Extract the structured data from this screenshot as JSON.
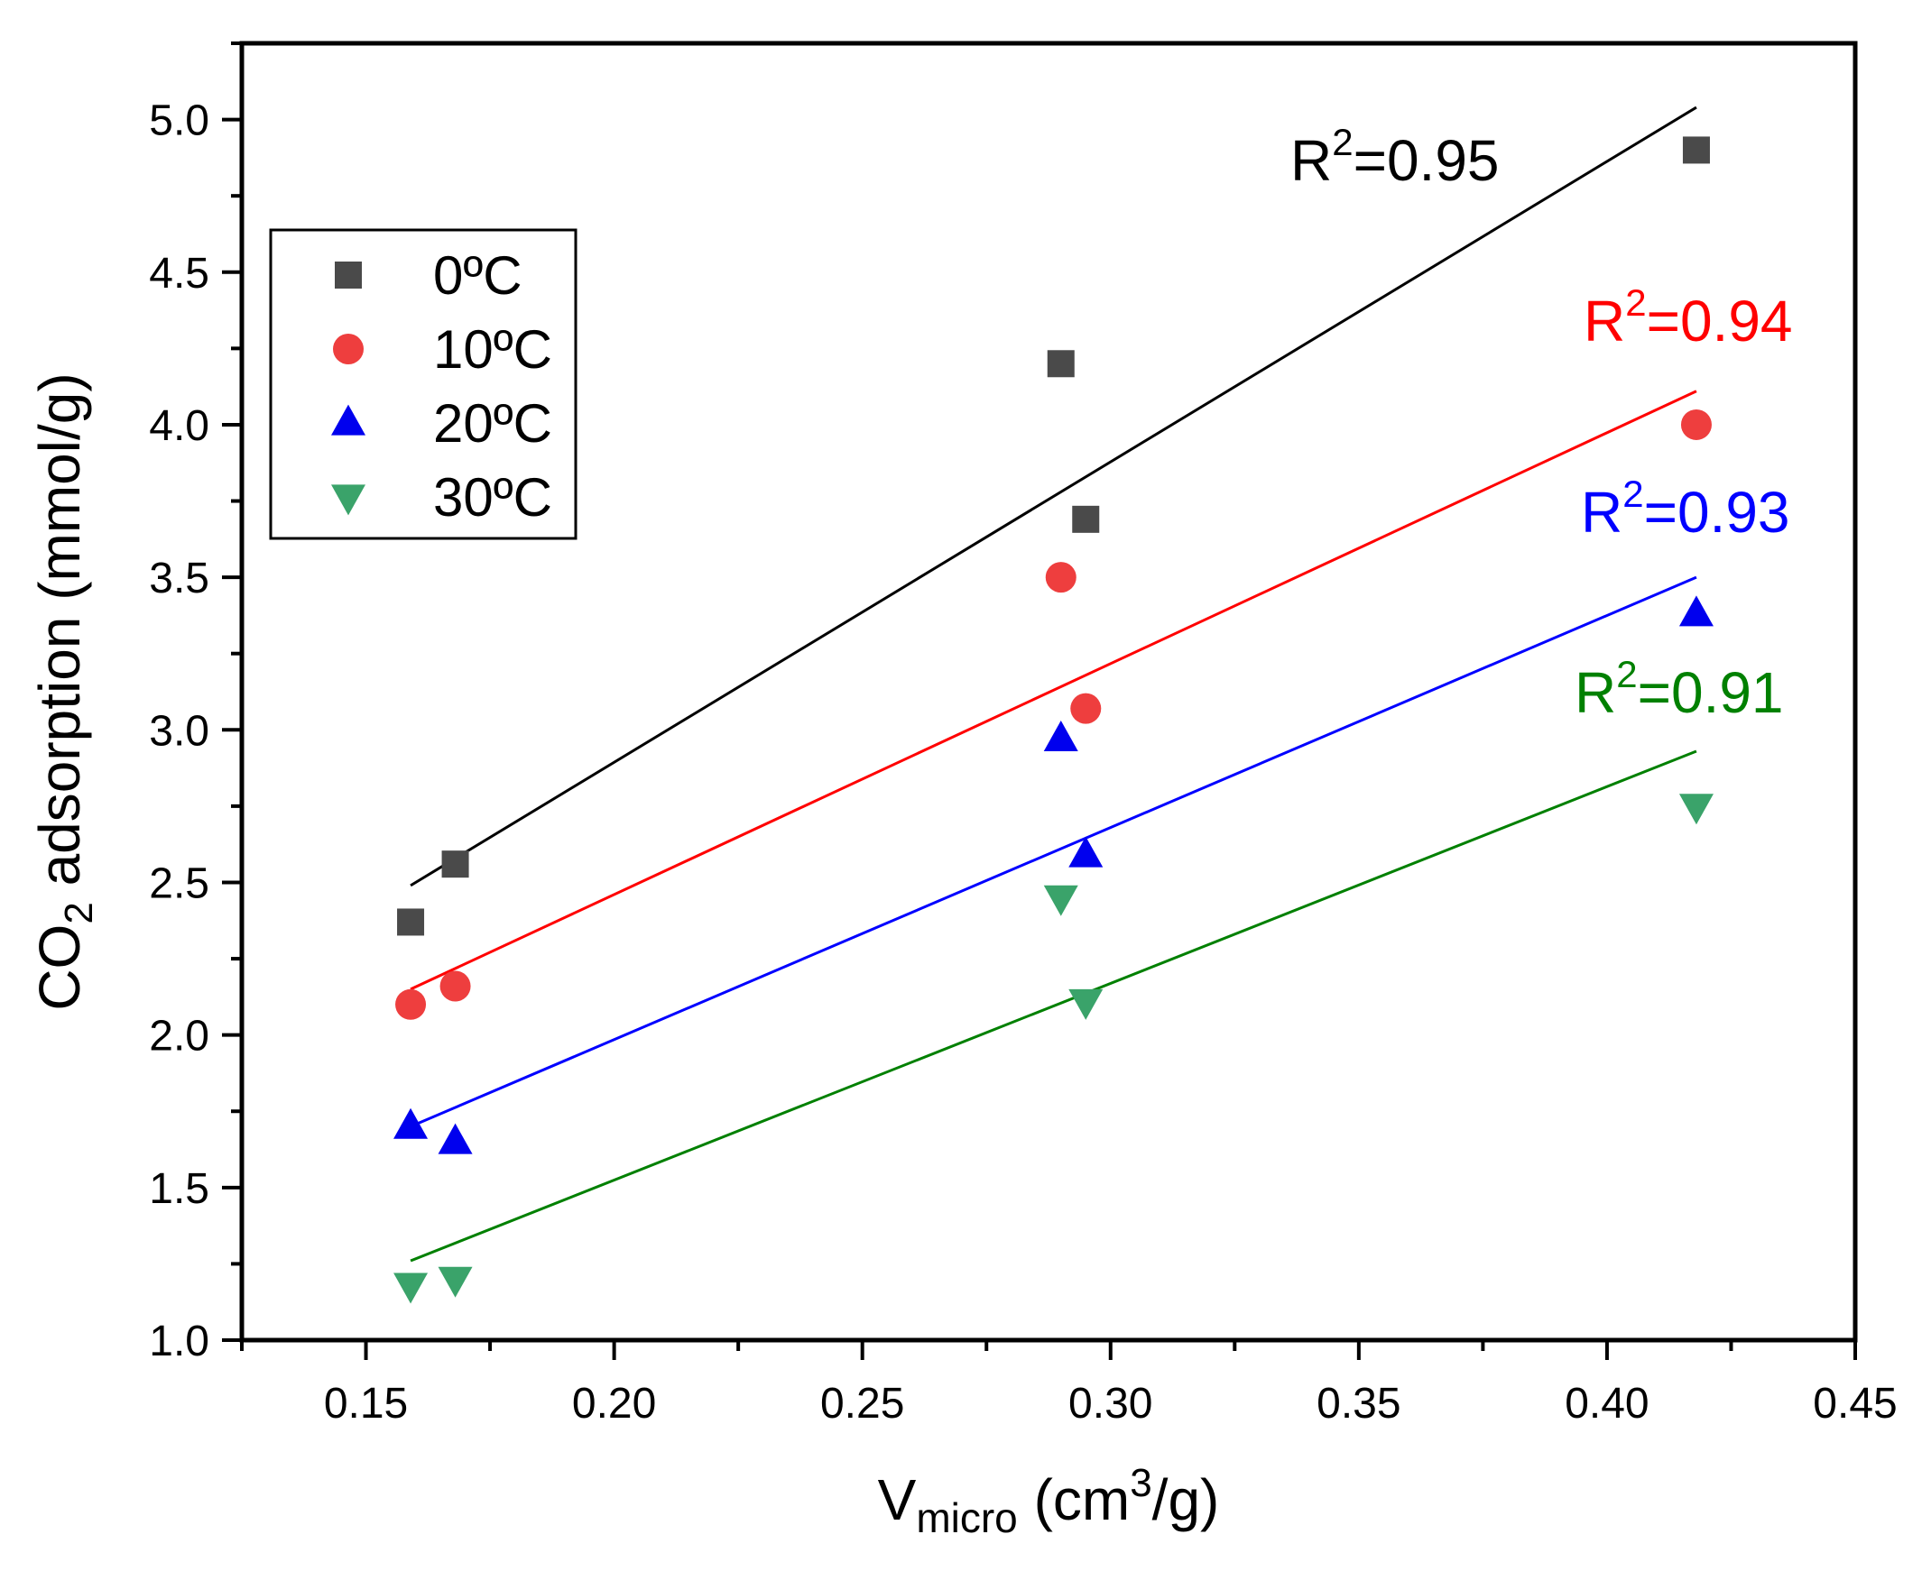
{
  "chart_data": {
    "type": "scatter",
    "x_axis": {
      "label_main": "V",
      "label_sub": "micro",
      "label_unit_pre": " (cm",
      "label_sup": "3",
      "label_unit_post": "/g)",
      "lim": [
        0.125,
        0.45
      ],
      "major_ticks": [
        0.15,
        0.2,
        0.25,
        0.3,
        0.35,
        0.4,
        0.45
      ],
      "tick_labels": [
        "0.15",
        "0.20",
        "0.25",
        "0.30",
        "0.35",
        "0.40",
        "0.45"
      ],
      "minor_ticks": [
        0.125,
        0.175,
        0.225,
        0.275,
        0.325,
        0.375,
        0.425
      ]
    },
    "y_axis": {
      "label_pre": "CO",
      "label_sub": "2",
      "label_post": " adsorption (mmol/g)",
      "lim": [
        1.0,
        5.25
      ],
      "major_ticks": [
        1.0,
        1.5,
        2.0,
        2.5,
        3.0,
        3.5,
        4.0,
        4.5,
        5.0
      ],
      "tick_labels": [
        "1.0",
        "1.5",
        "2.0",
        "2.5",
        "3.0",
        "3.5",
        "4.0",
        "4.5",
        "5.0"
      ],
      "minor_ticks": [
        1.25,
        1.75,
        2.25,
        2.75,
        3.25,
        3.75,
        4.25,
        4.75,
        5.25
      ]
    },
    "series": [
      {
        "name": "0ºC",
        "marker": "square",
        "marker_color": "#4a4a4a",
        "line_color": "#000000",
        "x": [
          0.159,
          0.168,
          0.29,
          0.295,
          0.418
        ],
        "y": [
          2.37,
          2.56,
          4.2,
          3.69,
          4.9
        ],
        "fit": {
          "x": [
            0.159,
            0.418
          ],
          "y": [
            2.49,
            5.04
          ]
        },
        "r2_prefix": "R",
        "r2_sup": "2",
        "r2_value": "=0.95"
      },
      {
        "name": "10ºC",
        "marker": "circle",
        "marker_color": "#ee3e3e",
        "line_color": "#ff0000",
        "x": [
          0.159,
          0.168,
          0.29,
          0.295,
          0.418
        ],
        "y": [
          2.1,
          2.16,
          3.5,
          3.07,
          4.0
        ],
        "fit": {
          "x": [
            0.159,
            0.418
          ],
          "y": [
            2.15,
            4.11
          ]
        },
        "r2_prefix": "R",
        "r2_sup": "2",
        "r2_value": "=0.94"
      },
      {
        "name": "20ºC",
        "marker": "triangle-up",
        "marker_color": "#0000ee",
        "line_color": "#0000ff",
        "x": [
          0.159,
          0.168,
          0.29,
          0.295,
          0.418
        ],
        "y": [
          1.7,
          1.65,
          2.97,
          2.59,
          3.38
        ],
        "fit": {
          "x": [
            0.159,
            0.418
          ],
          "y": [
            1.7,
            3.5
          ]
        },
        "r2_prefix": "R",
        "r2_sup": "2",
        "r2_value": "=0.93"
      },
      {
        "name": "30ºC",
        "marker": "triangle-down",
        "marker_color": "#3aa36a",
        "line_color": "#008000",
        "x": [
          0.159,
          0.168,
          0.29,
          0.295,
          0.418
        ],
        "y": [
          1.18,
          1.2,
          2.45,
          2.11,
          2.75
        ],
        "fit": {
          "x": [
            0.159,
            0.418
          ],
          "y": [
            1.26,
            2.93
          ]
        },
        "r2_prefix": "R",
        "r2_sup": "2",
        "r2_value": "=0.91"
      }
    ],
    "legend_position": "upper-left"
  }
}
